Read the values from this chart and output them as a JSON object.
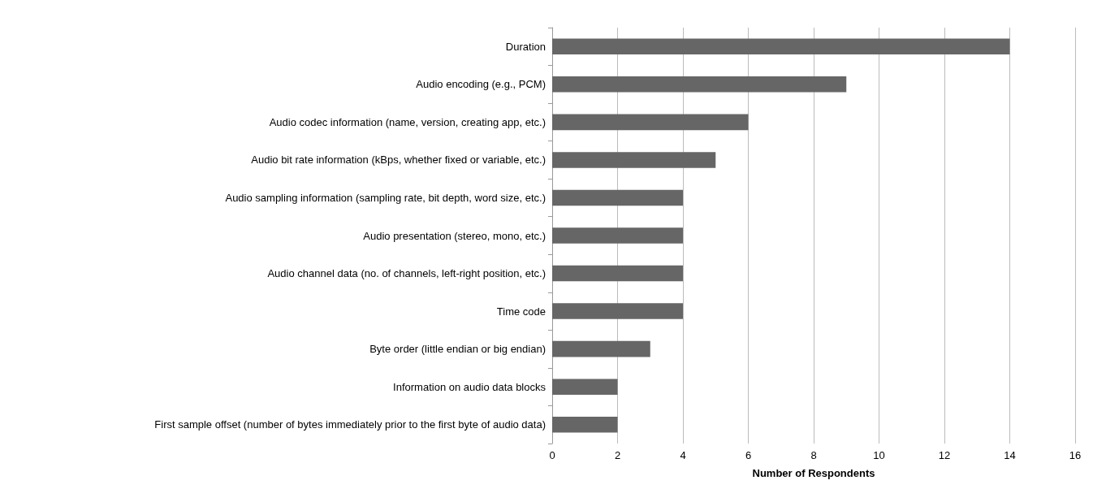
{
  "chart_data": {
    "type": "bar",
    "orientation": "horizontal",
    "xlabel": "Number of Respondents",
    "categories": [
      "Duration",
      "Audio encoding (e.g., PCM)",
      "Audio codec information (name, version, creating app, etc.)",
      "Audio bit rate information (kBps, whether fixed or variable, etc.)",
      "Audio sampling information (sampling rate, bit depth, word size, etc.)",
      "Audio presentation (stereo, mono, etc.)",
      "Audio channel data (no. of channels, left-right position, etc.)",
      "Time code",
      "Byte order (little endian or big endian)",
      "Information on audio data blocks",
      "First sample offset (number of bytes immediately prior to the first byte of audio data)"
    ],
    "values": [
      14,
      9,
      6,
      5,
      4,
      4,
      4,
      4,
      3,
      2,
      2
    ],
    "color": "#666666",
    "xlim": [
      0,
      16
    ],
    "xticks": [
      0,
      2,
      4,
      6,
      8,
      10,
      12,
      14,
      16
    ],
    "grid": "x"
  }
}
